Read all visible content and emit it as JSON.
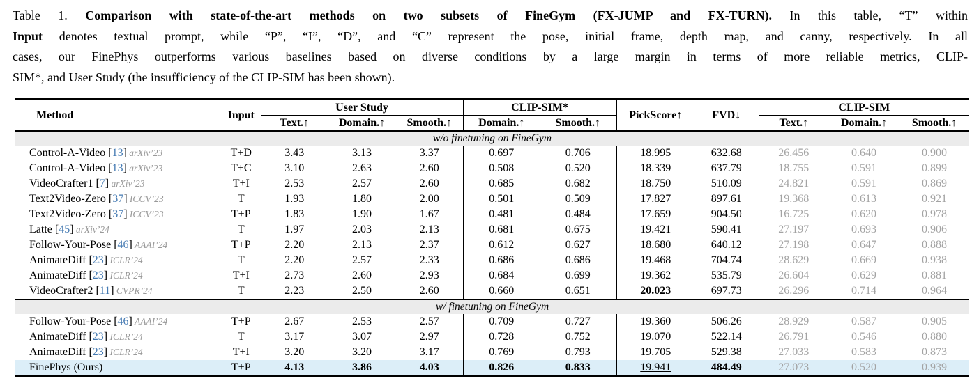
{
  "caption_lines": [
    [
      {
        "t": "Table 1. "
      },
      {
        "t": "Comparison with state-of-the-art methods on two subsets of FineGym (FX-JUMP and FX-TURN).",
        "b": true
      },
      {
        "t": " In this table, “T” within"
      }
    ],
    [
      {
        "t": "Input",
        "b": true
      },
      {
        "t": " denotes textual prompt, while “P”, “I”, “D”, and “C” represent the pose, initial frame, depth map, and canny, respectively. In all"
      }
    ],
    [
      {
        "t": "cases, our FinePhys outperforms various baselines based on diverse conditions by a large margin in terms of more reliable metrics, CLIP-"
      }
    ],
    [
      {
        "t": "SIM*, and User Study (the insufficiency of the CLIP-SIM has been shown)."
      }
    ]
  ],
  "colors": {
    "citation_blue": "#4379b2",
    "venue_gray": "#999999",
    "clip_sim_gray": "#a3a3a3",
    "section_band_bg": "#ebebeb",
    "highlight_row_bg": "#dceef8"
  },
  "table": {
    "header": {
      "method": "Method",
      "input": "Input",
      "user_study": "User Study",
      "clip_sim_star": "CLIP-SIM*",
      "pickscore": "PickScore↑",
      "fvd": "FVD↓",
      "clip_sim": "CLIP-SIM",
      "sub_text": "Text.↑",
      "sub_domain": "Domain.↑",
      "sub_smooth": "Smooth.↑"
    },
    "column_semantics": [
      "user-study-text",
      "user-study-domain",
      "user-study-smooth",
      "clip-sim-star-domain",
      "clip-sim-star-smooth",
      "pickscore",
      "fvd",
      "clip-sim-text",
      "clip-sim-domain",
      "clip-sim-smooth"
    ],
    "sections": [
      {
        "title": "w/o finetuning on FineGym",
        "rows": [
          {
            "method": "Control-A-Video",
            "cite": "13",
            "venue": "arXiv’23",
            "input": "T+D",
            "cells": [
              "3.43",
              "3.13",
              "3.37",
              "0.697",
              "0.706",
              "18.995",
              "632.68",
              "26.456",
              "0.640",
              "0.900"
            ]
          },
          {
            "method": "Control-A-Video",
            "cite": "13",
            "venue": "arXiv’23",
            "input": "T+C",
            "cells": [
              "3.10",
              "2.63",
              "2.60",
              "0.508",
              "0.520",
              "18.339",
              "637.79",
              "18.755",
              "0.591",
              "0.899"
            ]
          },
          {
            "method": "VideoCrafter1",
            "cite": "7",
            "venue": "arXiv’23",
            "input": "T+I",
            "cells": [
              "2.53",
              "2.57",
              "2.60",
              "0.685",
              "0.682",
              "18.750",
              "510.09",
              "24.821",
              "0.591",
              "0.869"
            ]
          },
          {
            "method": "Text2Video-Zero",
            "cite": "37",
            "venue": "ICCV’23",
            "input": "T",
            "cells": [
              "1.93",
              "1.80",
              "2.00",
              "0.501",
              "0.509",
              "17.827",
              "897.61",
              "19.368",
              "0.613",
              "0.921"
            ]
          },
          {
            "method": "Text2Video-Zero",
            "cite": "37",
            "venue": "ICCV’23",
            "input": "T+P",
            "cells": [
              "1.83",
              "1.90",
              "1.67",
              "0.481",
              "0.484",
              "17.659",
              "904.50",
              "16.725",
              "0.620",
              "0.978"
            ]
          },
          {
            "method": "Latte",
            "cite": "45",
            "venue": "arXiv’24",
            "input": "T",
            "cells": [
              "1.97",
              "2.03",
              "2.13",
              "0.681",
              "0.675",
              "19.421",
              "590.41",
              "27.197",
              "0.693",
              "0.906"
            ]
          },
          {
            "method": "Follow-Your-Pose",
            "cite": "46",
            "venue": "AAAI’24",
            "input": "T+P",
            "cells": [
              "2.20",
              "2.13",
              "2.37",
              "0.612",
              "0.627",
              "18.680",
              "640.12",
              "27.198",
              "0.647",
              "0.888"
            ]
          },
          {
            "method": "AnimateDiff",
            "cite": "23",
            "venue": "ICLR’24",
            "input": "T",
            "cells": [
              "2.20",
              "2.57",
              "2.33",
              "0.686",
              "0.686",
              "19.468",
              "704.74",
              "28.629",
              "0.669",
              "0.938"
            ]
          },
          {
            "method": "AnimateDiff",
            "cite": "23",
            "venue": "ICLR’24",
            "input": "T+I",
            "cells": [
              "2.73",
              "2.60",
              "2.93",
              "0.684",
              "0.699",
              "19.362",
              "535.79",
              "26.604",
              "0.629",
              "0.881"
            ]
          },
          {
            "method": "VideoCrafter2",
            "cite": "11",
            "venue": "CVPR’24",
            "input": "T",
            "cells": [
              "2.23",
              "2.50",
              "2.60",
              "0.660",
              "0.651",
              "20.023",
              "697.73",
              "26.296",
              "0.714",
              "0.964"
            ],
            "styles": {
              "5": "bold"
            }
          }
        ]
      },
      {
        "title": "w/ finetuning on FineGym",
        "rows": [
          {
            "method": "Follow-Your-Pose",
            "cite": "46",
            "venue": "AAAI’24",
            "input": "T+P",
            "cells": [
              "2.67",
              "2.53",
              "2.57",
              "0.709",
              "0.727",
              "19.360",
              "506.26",
              "28.929",
              "0.587",
              "0.905"
            ]
          },
          {
            "method": "AnimateDiff",
            "cite": "23",
            "venue": "ICLR’24",
            "input": "T",
            "cells": [
              "3.17",
              "3.07",
              "2.97",
              "0.728",
              "0.752",
              "19.070",
              "522.14",
              "26.791",
              "0.546",
              "0.880"
            ]
          },
          {
            "method": "AnimateDiff",
            "cite": "23",
            "venue": "ICLR’24",
            "input": "T+I",
            "cells": [
              "3.20",
              "3.20",
              "3.17",
              "0.769",
              "0.793",
              "19.705",
              "529.38",
              "27.033",
              "0.583",
              "0.873"
            ]
          },
          {
            "method": "FinePhys (Ours)",
            "input": "T+P",
            "cells": [
              "4.13",
              "3.86",
              "4.03",
              "0.826",
              "0.833",
              "19.941",
              "484.49",
              "27.073",
              "0.520",
              "0.939"
            ],
            "highlight": true,
            "styles": {
              "0": "bold",
              "1": "bold",
              "2": "bold",
              "3": "bold",
              "4": "bold",
              "5": "underline",
              "6": "bold"
            }
          }
        ]
      }
    ]
  }
}
